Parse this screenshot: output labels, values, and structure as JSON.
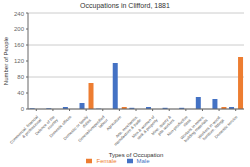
{
  "chart_data": {
    "type": "bar",
    "title": "Occupations in Clifford, 1881",
    "xlabel": "Types of Occupation",
    "ylabel": "Number of People",
    "categories": [
      "Commercial, financial\n& professional",
      "Defence of the\ncountry",
      "Domestic offices",
      "Domestic or family\nduties",
      "General/unspecified\nlabour",
      "Agriculture",
      "Arts, mechanics,\nmanufacture & trade",
      "Men & women of\nrank & property",
      "Mine, quarry &\npits workers",
      "Non-productive\nclass",
      "Workers in mines,\nbuilding materials",
      "Workers in wood,\nfurniture, fittings",
      "Domestic service"
    ],
    "series": [
      {
        "name": "Male",
        "color": "#4472C4",
        "values": [
          2,
          2,
          5,
          15,
          1,
          115,
          3,
          5,
          3,
          3,
          30,
          25,
          5
        ]
      },
      {
        "name": "Female",
        "color": "#ED7D31",
        "values": [
          0,
          0,
          0,
          65,
          0,
          5,
          0,
          0,
          0,
          0,
          0,
          5,
          130
        ]
      }
    ],
    "ylim": [
      0,
      240
    ],
    "yticks": [
      0,
      40,
      80,
      120,
      160,
      200,
      240
    ],
    "grid": true,
    "legend": "bottom"
  }
}
